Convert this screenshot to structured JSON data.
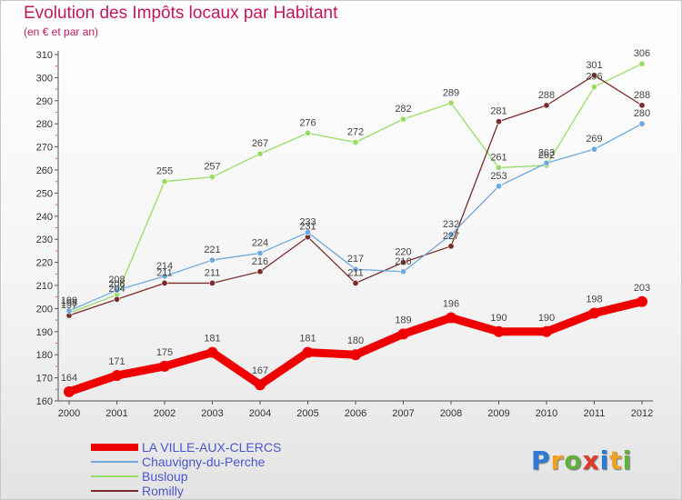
{
  "chart_data": {
    "type": "line",
    "title": "Evolution des Impôts locaux par Habitant",
    "subtitle": "(en € et par an)",
    "x": [
      2000,
      2001,
      2002,
      2003,
      2004,
      2005,
      2006,
      2007,
      2008,
      2009,
      2010,
      2011,
      2012
    ],
    "ylim": [
      160,
      310
    ],
    "yticks": [
      160,
      170,
      180,
      190,
      200,
      210,
      220,
      230,
      240,
      250,
      260,
      270,
      280,
      290,
      300,
      310
    ],
    "grid": false,
    "legend_position": "bottom-left",
    "series": [
      {
        "name": "LA VILLE-AUX-CLERCS",
        "color": "#ee0000",
        "values": [
          164,
          171,
          175,
          181,
          167,
          181,
          180,
          189,
          196,
          190,
          190,
          198,
          203
        ]
      },
      {
        "name": "Chauvigny-du-Perche",
        "color": "#6fa8dc",
        "values": [
          199,
          208,
          214,
          221,
          224,
          233,
          217,
          216,
          232,
          253,
          263,
          269,
          280
        ]
      },
      {
        "name": "Busloup",
        "color": "#99dd66",
        "values": [
          198,
          206,
          255,
          257,
          267,
          276,
          272,
          282,
          289,
          261,
          262,
          296,
          306
        ]
      },
      {
        "name": "Romilly",
        "color": "#7a2a2a",
        "values": [
          197,
          204,
          211,
          211,
          216,
          231,
          211,
          220,
          227,
          281,
          288,
          301,
          288
        ]
      }
    ]
  },
  "brand": {
    "letters": [
      "P",
      "r",
      "o",
      "x",
      "i",
      "t",
      "i"
    ],
    "colors": [
      "#2b7bd6",
      "#f0a020",
      "#5fb13c",
      "#e23b2b",
      "#2b7bd6",
      "#f0a020",
      "#5fb13c"
    ]
  }
}
